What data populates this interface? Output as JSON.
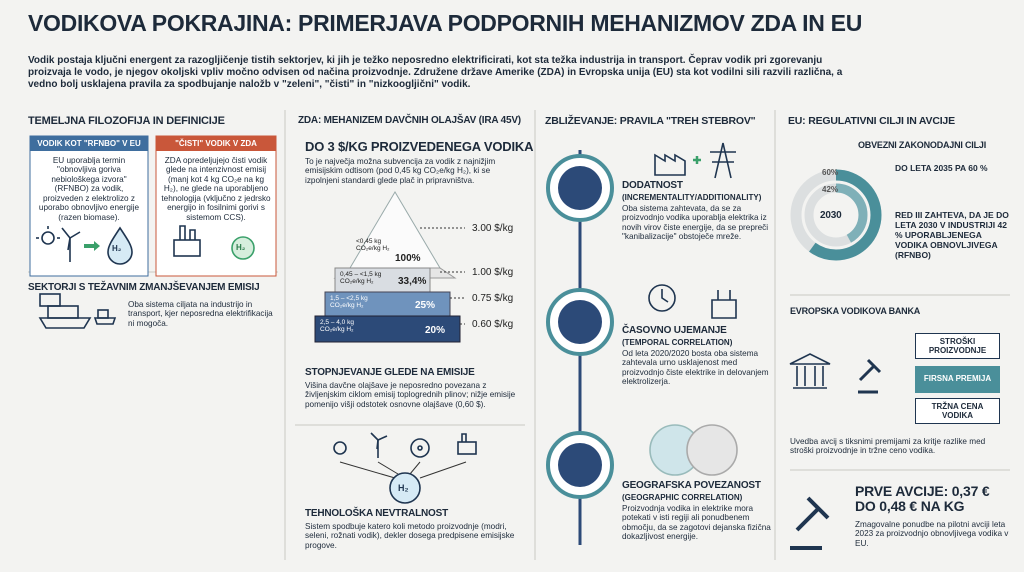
{
  "header": {
    "title": "VODIKOVA POKRAJINA: PRIMERJAVA PODPORNIH MEHANIZMOV ZDA IN EU",
    "intro": "Vodik postaja ključni energent za razogljičenje tistih sektorjev, ki jih je težko neposredno elektrificirati, kot sta težka industrija in transport. Čeprav vodik pri zgorevanju proizvaja le vodo, je njegov okoljski vpliv močno odvisen od načina proizvodnje. Združene države Amerike (ZDA) in Evropska unija (EU) sta kot vodilni sili razvili različna, a vedno bolj usklajena pravila za spodbujanje naložb v \"zeleni\", \"čisti\" in \"nizkoogljični\" vodik."
  },
  "icons": {
    "h2": "H₂"
  },
  "col1": {
    "title": "TEMELJNA FILOZOFIJA IN DEFINICIJE",
    "cards": [
      {
        "title": "VODIK KOT \"RFNBO\" V EU",
        "text": "EU uporablja termin \"obnovljiva goriva nebiološkega izvora\" (RFNBO) za vodik, proizveden z elektrolizo z uporabo obnovljivo energije (razen biomase)."
      },
      {
        "title": "\"ČISTI\" VODIK V ZDA",
        "text": "ZDA opredeljujejo čisti vodik glede na intenzivnost emisij (manj kot 4 kg CO₂e na kg H₂), ne glede na uporabljeno tehnologija (vključno z jedrsko energijo in fosilnimi gorivi s sistemom CCS)."
      }
    ],
    "sectors": {
      "title": "SEKTORJI S TEŽAVNIM ZMANJŠEVANJEM EMISIJ",
      "text": "Oba sistema ciljata na industrijo in transport, kjer neposredna elektrifikacija ni mogoča."
    }
  },
  "col2": {
    "title": "ZDA: MEHANIZEM DAVČNIH OLAJŠAV (IRA 45V)",
    "headline": "DO 3 $/KG PROIZVEDENEGA VODIKA",
    "text": "To je največja možna subvencija za vodik z najnižjim emisijskim odtisom (pod 0,45 kg CO₂e/kg H₂), ki se izpolnjeni standardi glede plač in pripravništva.",
    "tiers": [
      {
        "range": "<0,45 kg CO₂e/kg H₂",
        "share": "100%",
        "price": "3.00 $/kg"
      },
      {
        "range": "0,45 – <1,5 kg CO₂e/kg H₂",
        "share": "33,4%",
        "price": "1.00 $/kg"
      },
      {
        "range": "1,5 – <2,5 kg CO₂e/kg H₂",
        "share": "25%",
        "price": "0.75 $/kg"
      },
      {
        "range": "2,5 – 4,0 kg CO₂e/kg H₂",
        "share": "20%",
        "price": "0.60 $/kg"
      }
    ],
    "gradation": {
      "title": "STOPNJEVANJE GLEDE NA EMISIJE",
      "text": "Višina davčne olajšave je neposredno povezana z življenjskim ciklom emisij toplogrednih plinov; nižje emisije pomenijo višji odstotek osnovne olajšave (0,60 $)."
    },
    "neutrality": {
      "title": "TEHNOLOŠKA NEVTRALNOST",
      "text": "Sistem spodbuje katero koli metodo proizvodnje (modri, seleni, rožnati vodik), dekler dosega predpisene emisijske progove."
    }
  },
  "col3": {
    "title": "ZBLIŽEVANJE: PRAVILA \"TREH STEBROV\"",
    "pillars": [
      {
        "title": "DODATNOST",
        "subtitle": "(INCREMENTALITY/ADDITIONALITY)",
        "text": "Oba sistema zahtevata, da se za proizvodnjo vodika uporablja elektrika iz novih virov čiste energije, da se prepreči \"kanibalizacije\" obstoječe mreže."
      },
      {
        "title": "ČASOVNO UJEMANJE",
        "subtitle": "(TEMPORAL CORRELATION)",
        "text": "Od leta 2020/2020 bosta oba sistema zahtevala urno usklajenost med proizvodnjo čiste elektrike in delovanjem elektrolizerja."
      },
      {
        "title": "GEOGRAFSKA POVEZANOST",
        "subtitle": "(GEOGRAPHIC CORRELATION)",
        "text": "Proizvodnja vodika in elektrike mora potekati v isti regiji ali ponudbenem območju, da se zagotovi dejanska fizična dokazljivost energije."
      }
    ]
  },
  "col4": {
    "title": "EU: REGULATIVNI CILJI IN AVCIJE",
    "targets": {
      "title": "OBVEZNI ZAKONODAJNI CILJI",
      "rings": [
        {
          "value": 60,
          "label": "60%"
        },
        {
          "value": 42,
          "label": "42%"
        }
      ],
      "year": "2030",
      "notes": [
        "DO LETA 2035 PA 60 %",
        "RED III ZAHTEVA, DA JE DO LETA 2030 V INDUSTRIJI 42 % UPORABLJENEGA VODIKA OBNOVLJIVEGA (RFNBO)"
      ]
    },
    "bank": {
      "title": "EVROPSKA VODIKOVA BANKA",
      "boxes": [
        "STROŠKI PROIZVODNJE",
        "FIRSNA PREMIJA",
        "TRŽNA CENA VODIKA"
      ],
      "text": "Uvedba avcij s tiksnimi premijami za kritje razlike med stroški proizvodnje in tržne ceno vodika."
    },
    "auctions": {
      "title": "PRVE AVCIJE: 0,37 € DO 0,48 € NA KG",
      "text": "Zmagovalne ponudbe na pilotni avciji leta 2023 za proizvodnjo obnovljivega vodika v EU."
    }
  }
}
